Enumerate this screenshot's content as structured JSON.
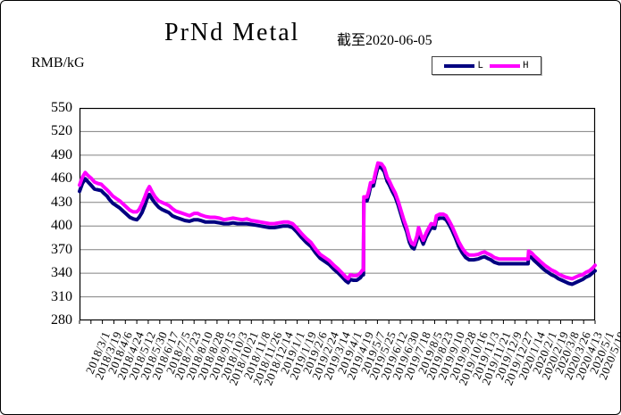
{
  "title": "PrNd Metal",
  "subtitle": "截至2020-06-05",
  "y_unit": "RMB/kG",
  "legend": [
    {
      "label": "L",
      "color": "#000080"
    },
    {
      "label": "H",
      "color": "#ff00ff"
    }
  ],
  "chart_data": {
    "type": "line",
    "title": "PrNd Metal",
    "subtitle": "截至2020-06-05",
    "ylabel": "RMB/kG",
    "ylim": [
      280,
      550
    ],
    "yticks": [
      280,
      310,
      340,
      370,
      400,
      430,
      460,
      490,
      520,
      550
    ],
    "grid": "horizontal",
    "grid_color": "#808080",
    "legend_position": "top-right",
    "x_tick_labels": [
      "2018/3/1",
      "2018/3/19",
      "2018/4/6",
      "2018/4/24",
      "2018/5/12",
      "2018/5/30",
      "2018/6/17",
      "2018/7/5",
      "2018/7/23",
      "2018/8/10",
      "2018/8/28",
      "2018/9/15",
      "2018/10/3",
      "2018/10/21",
      "2018/11/8",
      "2018/11/26",
      "2018/12/14",
      "2019/1/1",
      "2019/1/19",
      "2019/2/6",
      "2019/2/24",
      "2019/3/14",
      "2019/4/1",
      "2019/4/19",
      "2019/5/7",
      "2019/5/25",
      "2019/6/12",
      "2019/6/30",
      "2019/7/18",
      "2019/8/5",
      "2019/8/23",
      "2019/9/10",
      "2019/9/28",
      "2019/10/16",
      "2019/11/3",
      "2019/11/21",
      "2019/12/9",
      "2019/12/27",
      "2020/1/14",
      "2020/2/1",
      "2020/2/19",
      "2020/3/8",
      "2020/3/26",
      "2020/4/13",
      "2020/5/1",
      "2020/5/19"
    ],
    "series": [
      {
        "name": "L",
        "color": "#000080"
      },
      {
        "name": "H",
        "color": "#ff00ff"
      }
    ],
    "samples_format": [
      "x_tick_index",
      "L_value",
      "H_value"
    ],
    "samples": [
      [
        0,
        444,
        452
      ],
      [
        0.25,
        454,
        462
      ],
      [
        0.5,
        460,
        468
      ],
      [
        0.75,
        456,
        464
      ],
      [
        1,
        452,
        461
      ],
      [
        1.3,
        447,
        456
      ],
      [
        1.6,
        446,
        454
      ],
      [
        1.9,
        445,
        453
      ],
      [
        2.1,
        442,
        450
      ],
      [
        2.4,
        438,
        446
      ],
      [
        2.6,
        434,
        443
      ],
      [
        2.9,
        429,
        438
      ],
      [
        3.2,
        426,
        435
      ],
      [
        3.5,
        423,
        432
      ],
      [
        3.8,
        419,
        428
      ],
      [
        4.1,
        415,
        424
      ],
      [
        4.4,
        411,
        420
      ],
      [
        4.7,
        409,
        418
      ],
      [
        5,
        408,
        418
      ],
      [
        5.2,
        411,
        421
      ],
      [
        5.45,
        417,
        428
      ],
      [
        5.7,
        426,
        437
      ],
      [
        5.9,
        435,
        445
      ],
      [
        6.1,
        440,
        450
      ],
      [
        6.35,
        434,
        443
      ],
      [
        6.6,
        429,
        437
      ],
      [
        6.9,
        424,
        432
      ],
      [
        7.2,
        421,
        430
      ],
      [
        7.5,
        419,
        428
      ],
      [
        7.8,
        417,
        426
      ],
      [
        8.1,
        413,
        422
      ],
      [
        8.4,
        411,
        419
      ],
      [
        8.8,
        409,
        417
      ],
      [
        9.2,
        407,
        415
      ],
      [
        9.6,
        406,
        413
      ],
      [
        10,
        408,
        416
      ],
      [
        10.3,
        408,
        416
      ],
      [
        10.6,
        407,
        414
      ],
      [
        11,
        405,
        412
      ],
      [
        11.4,
        405,
        411
      ],
      [
        11.8,
        405,
        411
      ],
      [
        12.2,
        404,
        410
      ],
      [
        12.6,
        403,
        408
      ],
      [
        13,
        403,
        409
      ],
      [
        13.4,
        404,
        410
      ],
      [
        13.8,
        403,
        409
      ],
      [
        14.2,
        403,
        408
      ],
      [
        14.6,
        403,
        409
      ],
      [
        15,
        402,
        407
      ],
      [
        15.4,
        401,
        406
      ],
      [
        15.8,
        400,
        405
      ],
      [
        16.2,
        399,
        404
      ],
      [
        16.6,
        398,
        403
      ],
      [
        17,
        398,
        403
      ],
      [
        17.4,
        399,
        404
      ],
      [
        17.8,
        400,
        405
      ],
      [
        18.2,
        400,
        405
      ],
      [
        18.6,
        398,
        403
      ],
      [
        19,
        392,
        397
      ],
      [
        19.4,
        385,
        390
      ],
      [
        19.8,
        379,
        384
      ],
      [
        20.2,
        374,
        379
      ],
      [
        20.6,
        366,
        371
      ],
      [
        21,
        359,
        364
      ],
      [
        21.4,
        355,
        360
      ],
      [
        21.8,
        351,
        356
      ],
      [
        22.2,
        345,
        350
      ],
      [
        22.6,
        340,
        345
      ],
      [
        23,
        334,
        339
      ],
      [
        23.25,
        330,
        335
      ],
      [
        23.45,
        328,
        333
      ],
      [
        23.65,
        332,
        338
      ],
      [
        23.9,
        331,
        337
      ],
      [
        24.2,
        331,
        337
      ],
      [
        24.5,
        334,
        340
      ],
      [
        24.7,
        338,
        344
      ],
      [
        24.78,
        338,
        344
      ],
      [
        24.82,
        432,
        437
      ],
      [
        25.1,
        432,
        437
      ],
      [
        25.25,
        440,
        445
      ],
      [
        25.4,
        450,
        455
      ],
      [
        25.65,
        451,
        456
      ],
      [
        25.85,
        464,
        469
      ],
      [
        26.05,
        475,
        480
      ],
      [
        26.35,
        474,
        479
      ],
      [
        26.6,
        469,
        474
      ],
      [
        26.85,
        457,
        462
      ],
      [
        27.05,
        452,
        457
      ],
      [
        27.3,
        444,
        449
      ],
      [
        27.55,
        437,
        442
      ],
      [
        27.8,
        427,
        432
      ],
      [
        28.05,
        415,
        420
      ],
      [
        28.3,
        403,
        408
      ],
      [
        28.55,
        393,
        398
      ],
      [
        28.8,
        379,
        384
      ],
      [
        29,
        373,
        378
      ],
      [
        29.2,
        371,
        376
      ],
      [
        29.45,
        382,
        387
      ],
      [
        29.6,
        393,
        398
      ],
      [
        29.8,
        384,
        389
      ],
      [
        30,
        377,
        382
      ],
      [
        30.25,
        386,
        391
      ],
      [
        30.5,
        393,
        398
      ],
      [
        30.7,
        398,
        403
      ],
      [
        31,
        397,
        402
      ],
      [
        31.15,
        408,
        413
      ],
      [
        31.45,
        410,
        415
      ],
      [
        31.75,
        410,
        415
      ],
      [
        32,
        408,
        413
      ],
      [
        32.25,
        402,
        407
      ],
      [
        32.5,
        395,
        400
      ],
      [
        32.8,
        385,
        390
      ],
      [
        33.1,
        374,
        380
      ],
      [
        33.4,
        366,
        372
      ],
      [
        33.7,
        360,
        366
      ],
      [
        34,
        357,
        363
      ],
      [
        34.4,
        357,
        363
      ],
      [
        34.8,
        358,
        364
      ],
      [
        35.1,
        360,
        366
      ],
      [
        35.35,
        361,
        367
      ],
      [
        35.6,
        359,
        365
      ],
      [
        35.9,
        357,
        363
      ],
      [
        36.2,
        354,
        360
      ],
      [
        36.6,
        352,
        358
      ],
      [
        37,
        352,
        358
      ],
      [
        37.4,
        352,
        358
      ],
      [
        37.8,
        352,
        358
      ],
      [
        38.2,
        352,
        358
      ],
      [
        38.6,
        352,
        358
      ],
      [
        39,
        352,
        358
      ],
      [
        39.15,
        352,
        358
      ],
      [
        39.2,
        362,
        368
      ],
      [
        39.45,
        360,
        366
      ],
      [
        39.7,
        356,
        362
      ],
      [
        40,
        352,
        358
      ],
      [
        40.3,
        348,
        354
      ],
      [
        40.6,
        344,
        350
      ],
      [
        40.9,
        341,
        347
      ],
      [
        41.2,
        338,
        344
      ],
      [
        41.5,
        336,
        342
      ],
      [
        41.8,
        333,
        339
      ],
      [
        42.1,
        331,
        337
      ],
      [
        42.4,
        329,
        335
      ],
      [
        42.7,
        327,
        334
      ],
      [
        43,
        326,
        333
      ],
      [
        43.3,
        328,
        335
      ],
      [
        43.6,
        330,
        337
      ],
      [
        43.9,
        332,
        338
      ],
      [
        44.2,
        335,
        341
      ],
      [
        44.5,
        337,
        343
      ],
      [
        44.75,
        340,
        346
      ],
      [
        45,
        343,
        350
      ]
    ]
  }
}
